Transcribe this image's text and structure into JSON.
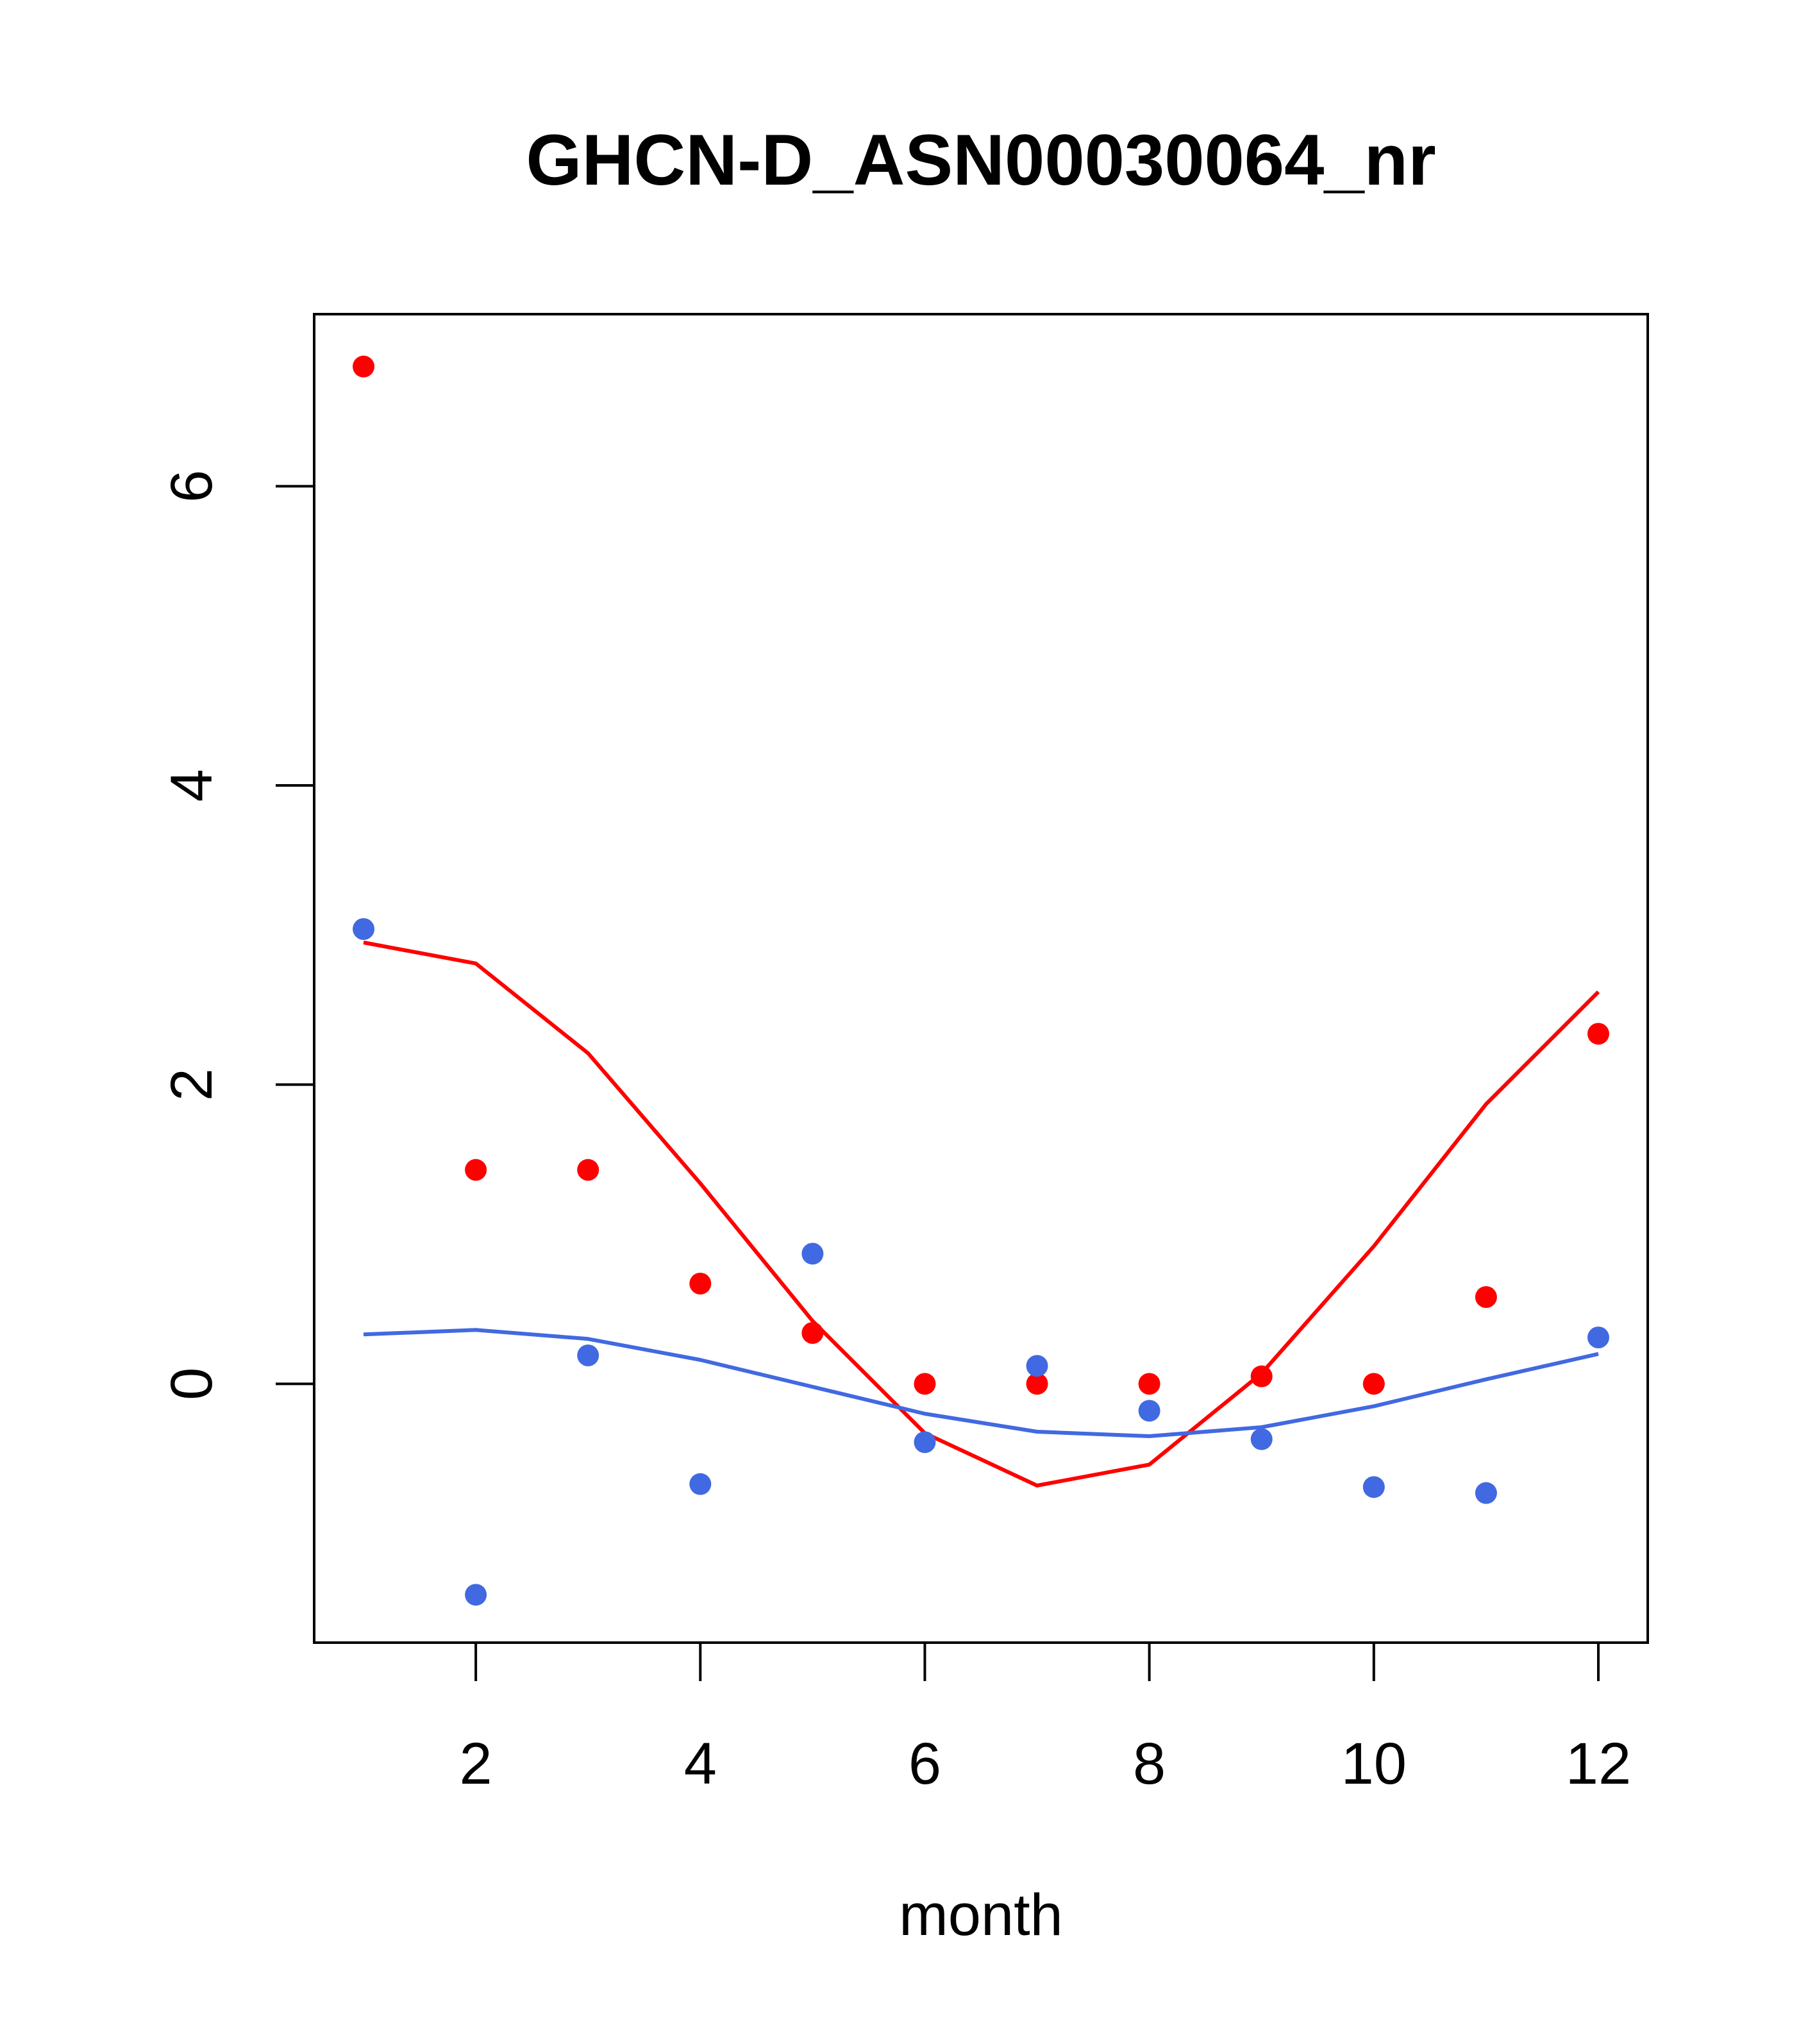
{
  "chart_data": {
    "type": "scatter",
    "title": "GHCN-D_ASN00030064_nr",
    "xlabel": "month",
    "ylabel": "",
    "xlim": [
      0.56,
      12.44
    ],
    "ylim": [
      -1.73,
      7.15
    ],
    "xticks": [
      2,
      4,
      6,
      8,
      10,
      12
    ],
    "yticks": [
      0,
      2,
      4,
      6
    ],
    "grid": false,
    "colors": {
      "red": "#ff0000",
      "blue": "#4169e1"
    },
    "series": [
      {
        "color": "#ff0000",
        "points": {
          "x": [
            1,
            2,
            3,
            4,
            5,
            6,
            7,
            8,
            9,
            10,
            11,
            12
          ],
          "y": [
            6.8,
            1.43,
            1.43,
            0.67,
            0.34,
            0.0,
            0.0,
            0.0,
            0.05,
            0.0,
            0.58,
            2.34
          ]
        },
        "line": {
          "x": [
            1,
            2,
            3,
            4,
            5,
            6,
            7,
            8,
            9,
            10,
            11,
            12
          ],
          "y": [
            2.95,
            2.81,
            2.21,
            1.34,
            0.42,
            -0.33,
            -0.68,
            -0.54,
            0.07,
            0.92,
            1.87,
            2.62
          ]
        }
      },
      {
        "color": "#4169e1",
        "points": {
          "x": [
            1,
            2,
            3,
            4,
            5,
            6,
            7,
            8,
            9,
            10,
            11,
            12
          ],
          "y": [
            3.04,
            -1.41,
            0.19,
            -0.67,
            0.87,
            -0.39,
            0.12,
            -0.18,
            -0.37,
            -0.69,
            -0.73,
            0.31
          ]
        },
        "line": {
          "x": [
            1,
            2,
            3,
            4,
            5,
            6,
            7,
            8,
            9,
            10,
            11,
            12
          ],
          "y": [
            0.33,
            0.36,
            0.3,
            0.16,
            -0.02,
            -0.2,
            -0.32,
            -0.35,
            -0.29,
            -0.15,
            0.03,
            0.2
          ]
        }
      }
    ]
  }
}
